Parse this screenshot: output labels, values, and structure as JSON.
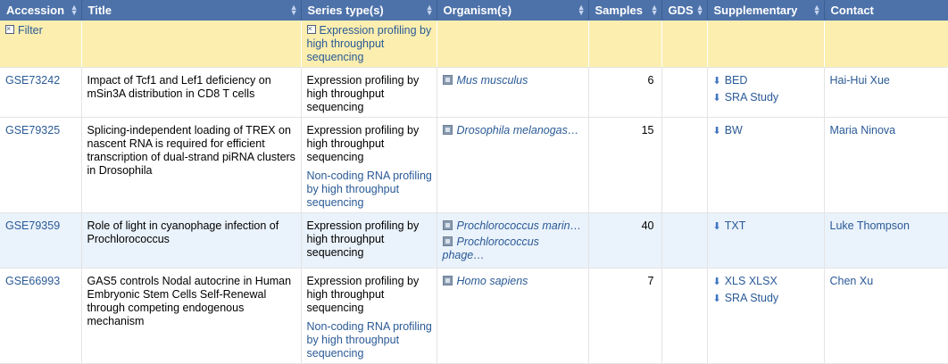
{
  "headers": [
    {
      "label": "Accession",
      "sort": true
    },
    {
      "label": "Title",
      "sort": true
    },
    {
      "label": "Series type(s)",
      "sort": true
    },
    {
      "label": "Organism(s)",
      "sort": true
    },
    {
      "label": "Samples",
      "sort": true
    },
    {
      "label": "GDS",
      "sort": true
    },
    {
      "label": "Supplementary",
      "sort": true
    },
    {
      "label": "Contact",
      "sort": false
    }
  ],
  "filter": {
    "label": "Filter",
    "series_type": "Expression profiling by high throughput sequencing"
  },
  "rows": [
    {
      "accession": "GSE73242",
      "title": "Impact of Tcf1 and Lef1 deficiency on mSin3A distribution in CD8 T cells",
      "series_types": [
        "Expression profiling by high throughput sequencing"
      ],
      "organisms": [
        "Mus musculus"
      ],
      "samples": "6",
      "gds": "",
      "supplementary": [
        "BED",
        "SRA Study"
      ],
      "contact": "Hai-Hui Xue"
    },
    {
      "accession": "GSE79325",
      "title": "Splicing-independent loading of TREX on nascent RNA is required for efficient transcription of dual-strand piRNA clusters in Drosophila",
      "series_types": [
        "Expression profiling by high throughput sequencing",
        "Non-coding RNA profiling by high throughput sequencing"
      ],
      "organisms": [
        "Drosophila melanogas…"
      ],
      "samples": "15",
      "gds": "",
      "supplementary": [
        "BW"
      ],
      "contact": "Maria Ninova"
    },
    {
      "accession": "GSE79359",
      "title": "Role of light in cyanophage infection of Prochlorococcus",
      "series_types": [
        "Expression profiling by high throughput sequencing"
      ],
      "organisms": [
        "Prochlorococcus marin…",
        "Prochlorococcus phage…"
      ],
      "samples": "40",
      "gds": "",
      "supplementary": [
        "TXT"
      ],
      "contact": "Luke Thompson"
    },
    {
      "accession": "GSE66993",
      "title": "GAS5 controls Nodal autocrine in Human Embryonic Stem Cells Self-Renewal through competing endogenous mechanism",
      "series_types": [
        "Expression profiling by high throughput sequencing",
        "Non-coding RNA profiling by high throughput sequencing"
      ],
      "organisms": [
        "Homo sapiens"
      ],
      "samples": "7",
      "gds": "",
      "supplementary": [
        "XLS XLSX",
        "SRA Study"
      ],
      "contact": "Chen Xu"
    }
  ],
  "colors": {
    "header_bg": "#4d72aa",
    "filter_bg": "#fbeeaf",
    "alt_row_bg": "#eaf2fb",
    "link": "#2a5a96"
  }
}
